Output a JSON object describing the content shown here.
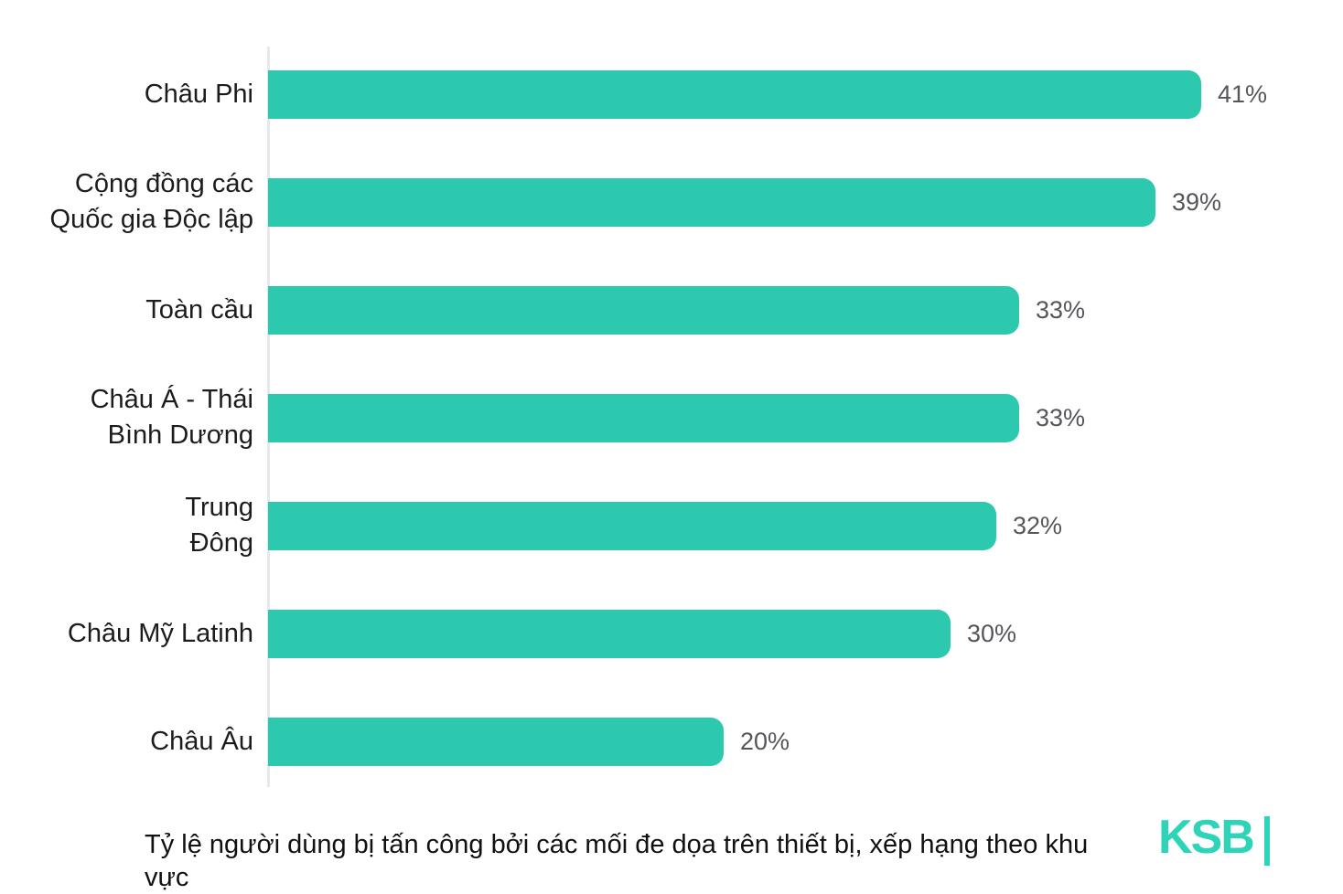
{
  "chart_data": {
    "type": "bar",
    "orientation": "horizontal",
    "title": "",
    "caption": "Tỷ lệ người dùng bị tấn công bởi các mối đe dọa trên thiết bị, xếp hạng theo khu vực",
    "categories": [
      "Châu Phi",
      "Cộng đồng các\nQuốc gia Độc lập",
      "Toàn cầu",
      "Châu Á - Thái\nBình Dương",
      "Trung\nĐông",
      "Châu Mỹ Latinh",
      "Châu Âu"
    ],
    "values": [
      41,
      39,
      33,
      33,
      32,
      30,
      20
    ],
    "value_labels": [
      "41%",
      "39%",
      "33%",
      "33%",
      "32%",
      "30%",
      "20%"
    ],
    "unit": "%",
    "xlim": [
      0,
      41
    ],
    "legend": "none",
    "grid": "off",
    "colors": {
      "bar": "#2cc9ae",
      "value_label": "#55565a",
      "category_label": "#1c1c1e",
      "axis_line": "#e6e8eb",
      "background": "#ffffff"
    }
  },
  "footer": {
    "logo_text": "KSB",
    "logo_color": "#2ed4b8"
  }
}
